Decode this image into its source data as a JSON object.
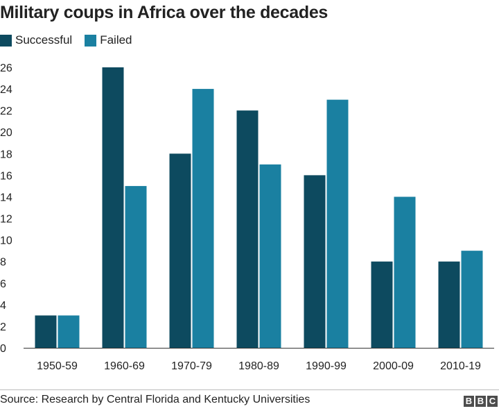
{
  "chart_data": {
    "type": "bar",
    "title": "Military coups in Africa over the decades",
    "categories": [
      "1950-59",
      "1960-69",
      "1970-79",
      "1980-89",
      "1990-99",
      "2000-09",
      "2010-19"
    ],
    "series": [
      {
        "name": "Successful",
        "color": "#0d4a5f",
        "values": [
          3,
          26,
          18,
          22,
          16,
          8,
          8
        ]
      },
      {
        "name": "Failed",
        "color": "#1a80a1",
        "values": [
          3,
          15,
          24,
          17,
          23,
          14,
          9
        ]
      }
    ],
    "ylim": [
      0,
      26
    ],
    "yticks": [
      0,
      2,
      4,
      6,
      8,
      10,
      12,
      14,
      16,
      18,
      20,
      22,
      24,
      26
    ],
    "xlabel": "",
    "ylabel": "",
    "legend_position": "top-left",
    "grid": false
  },
  "footer": {
    "source": "Source: Research by Central Florida and Kentucky Universities",
    "logo_letters": [
      "B",
      "B",
      "C"
    ]
  }
}
